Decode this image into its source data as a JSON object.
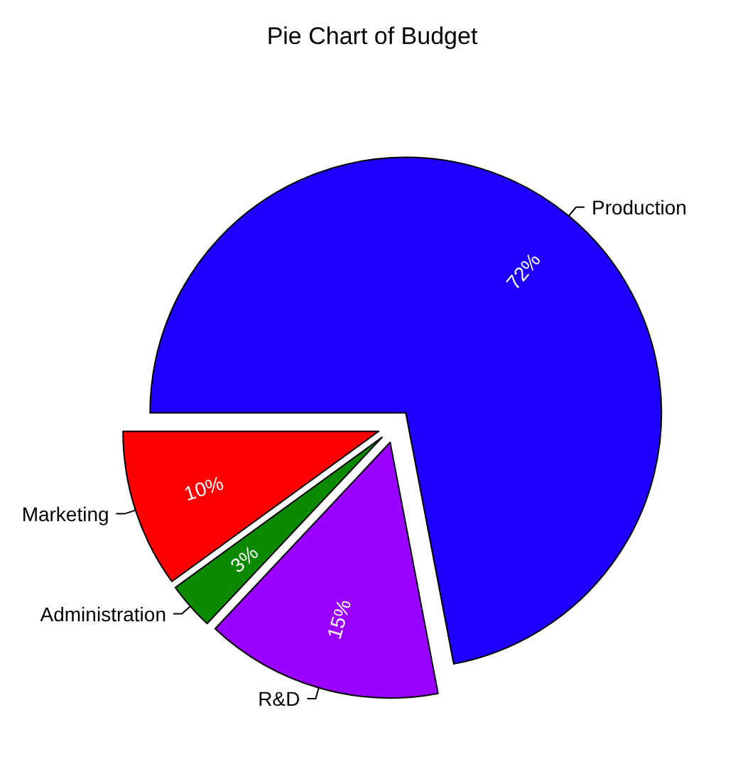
{
  "chart_data": {
    "type": "pie",
    "title": "Pie Chart of Budget",
    "categories": [
      "Production",
      "R&D",
      "Administration",
      "Marketing"
    ],
    "values": [
      72,
      15,
      3,
      10
    ],
    "colors": [
      "#1f00ff",
      "#9900ff",
      "#0b8a00",
      "#ff0000"
    ],
    "value_labels": [
      "72%",
      "15%",
      "3%",
      "10%"
    ]
  }
}
